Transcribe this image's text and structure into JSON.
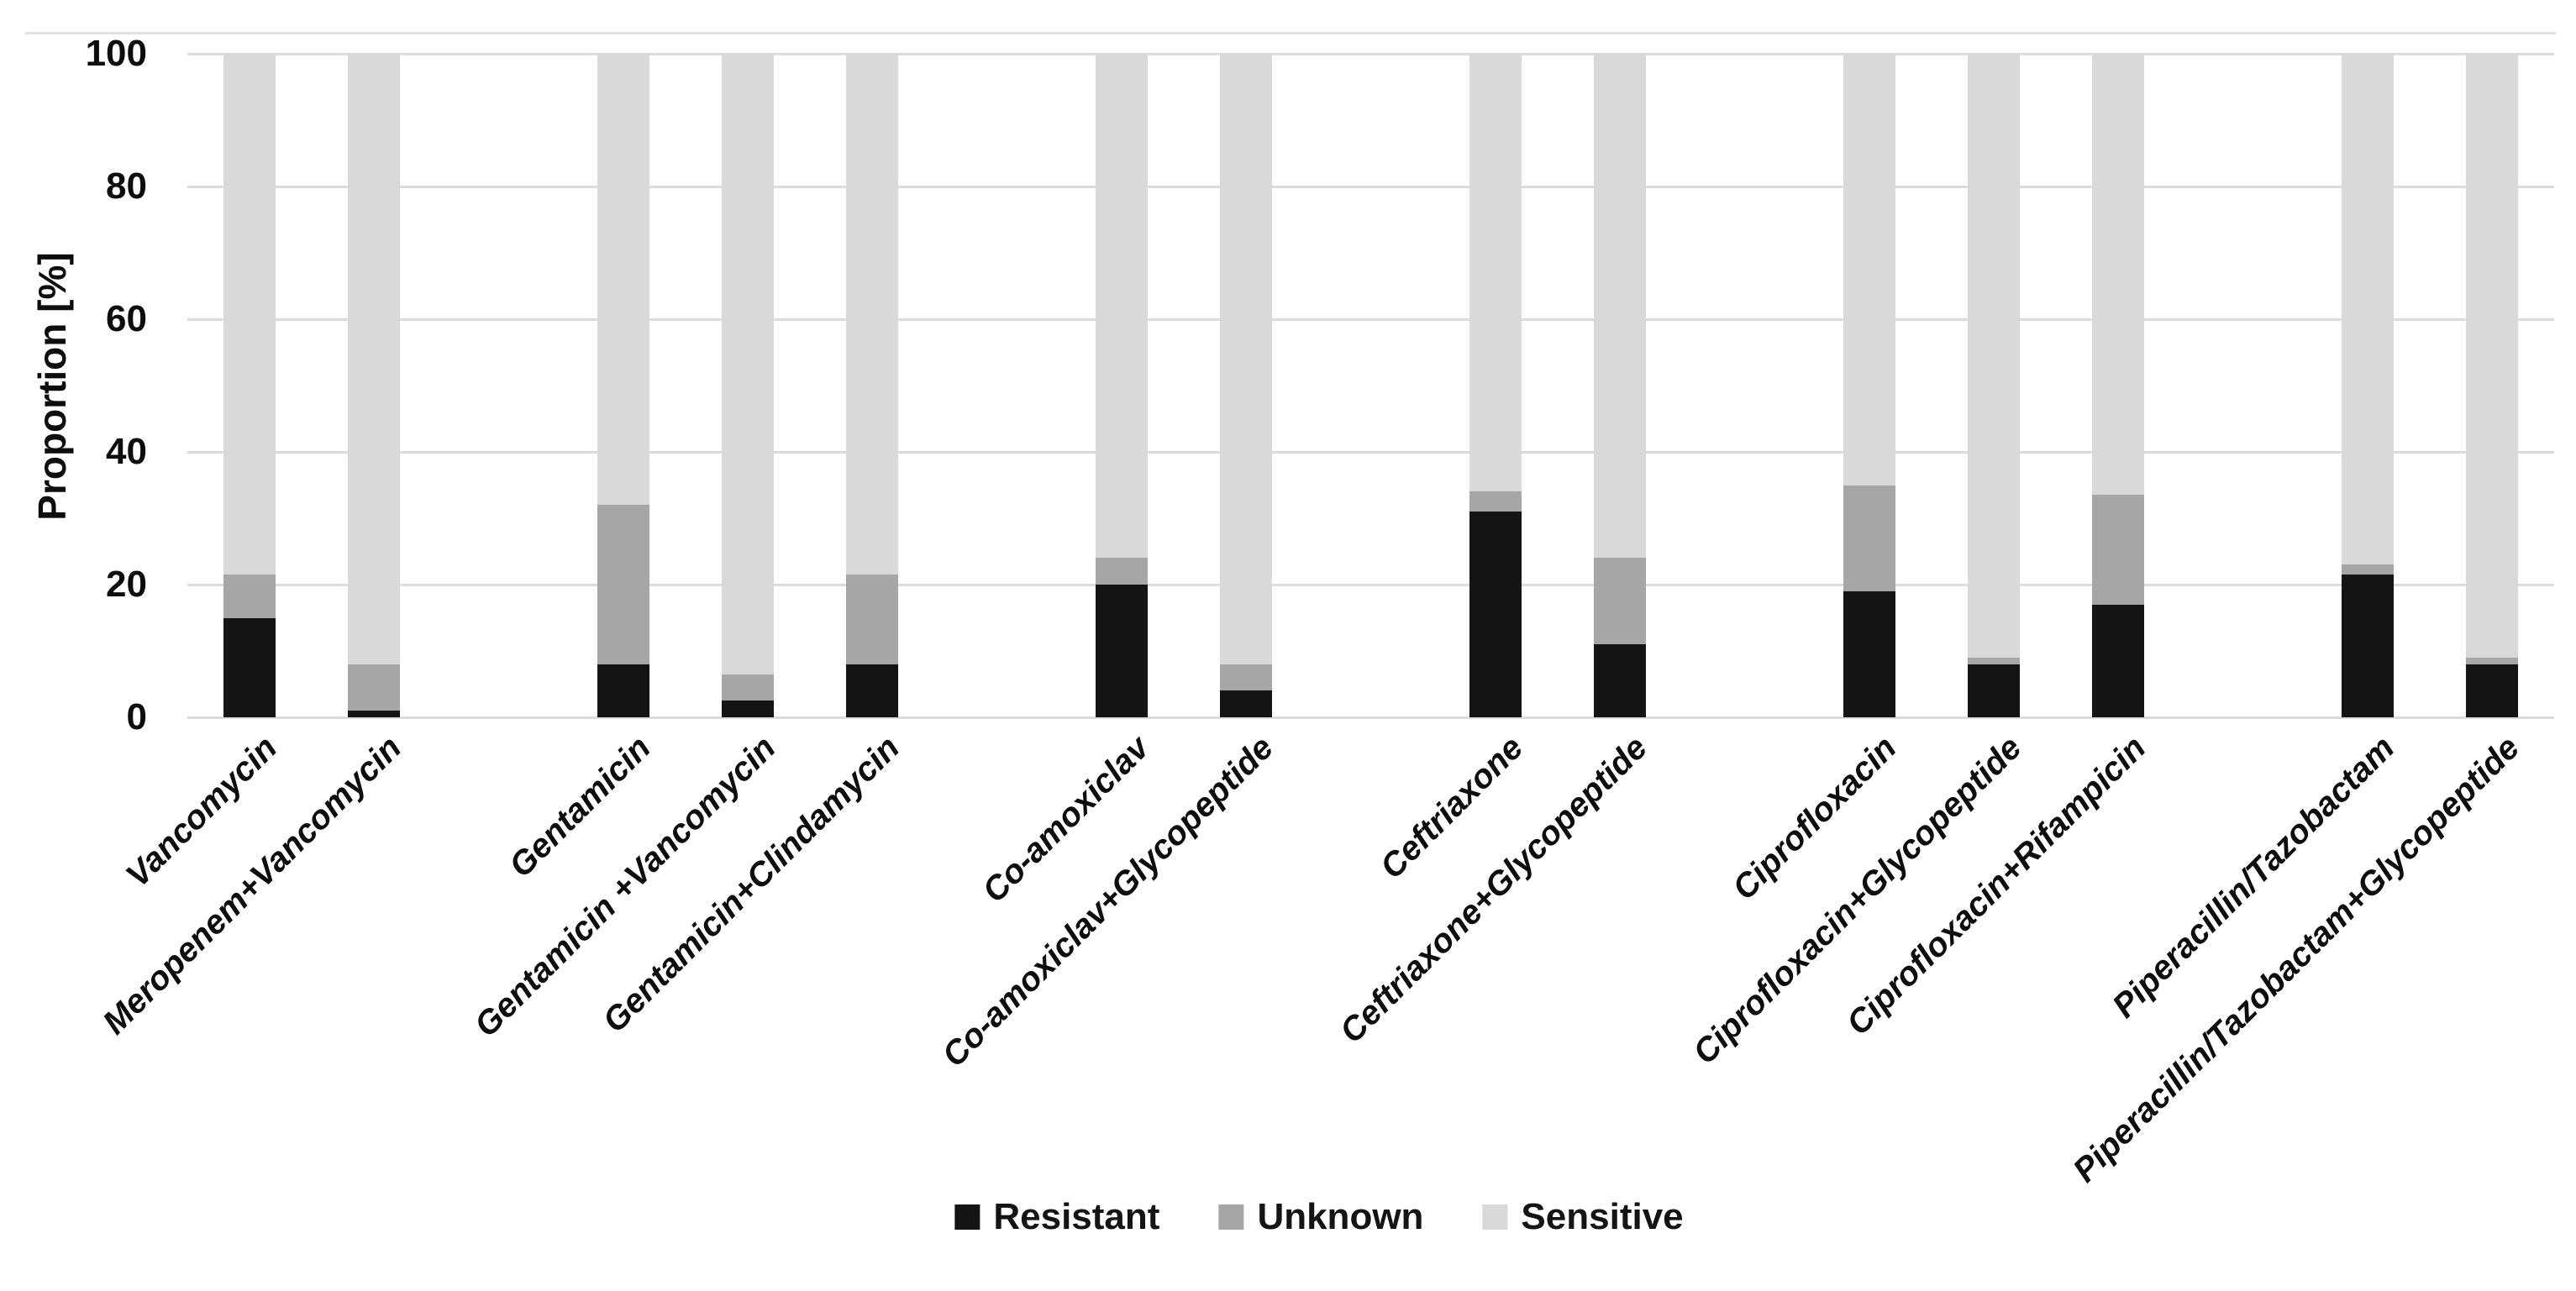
{
  "chart_data": {
    "type": "bar",
    "stacked": true,
    "orientation": "vertical",
    "title": "",
    "xlabel": "",
    "ylabel": "Proportion [%]",
    "ylim": [
      0,
      100
    ],
    "yticks": [
      0,
      20,
      40,
      60,
      80,
      100
    ],
    "grid": "horizontal",
    "legend_position": "bottom-center",
    "background_color": "#ffffff",
    "gridline_color": "#dcdcdc",
    "categories": [
      "Vancomycin",
      "Meropenem+Vancomycin",
      "Gentamicin",
      "Gentamicin +Vancomycin",
      "Gentamicin+Clindamycin",
      "Co-amoxiclav",
      "Co-amoxiclav+Glycopeptide",
      "Ceftriaxone",
      "Ceftriaxone+Glycopeptide",
      "Ciprofloxacin",
      "Ciprofloxacin+Glycopeptide",
      "Ciprofloxacin+Rifampicin",
      "Piperacillin/Tazobactam",
      "Piperacillin/Tazobactam+Glycopeptide"
    ],
    "group_gaps_after": [
      1,
      4,
      6,
      8,
      11
    ],
    "series": [
      {
        "name": "Resistant",
        "color": "#141414",
        "values": [
          15,
          1,
          8,
          2.5,
          8,
          20,
          4,
          31,
          11,
          19,
          8,
          17,
          21.5,
          8
        ]
      },
      {
        "name": "Unknown",
        "color": "#a6a6a6",
        "values": [
          6.5,
          7,
          24,
          4,
          13.5,
          4,
          4,
          3,
          13,
          16,
          1,
          16.5,
          1.5,
          1
        ]
      },
      {
        "name": "Sensitive",
        "color": "#d9d9d9",
        "values": [
          78.5,
          92,
          68,
          93.5,
          78.5,
          76,
          92,
          66,
          76,
          65,
          91,
          66.5,
          77,
          91
        ]
      }
    ]
  }
}
